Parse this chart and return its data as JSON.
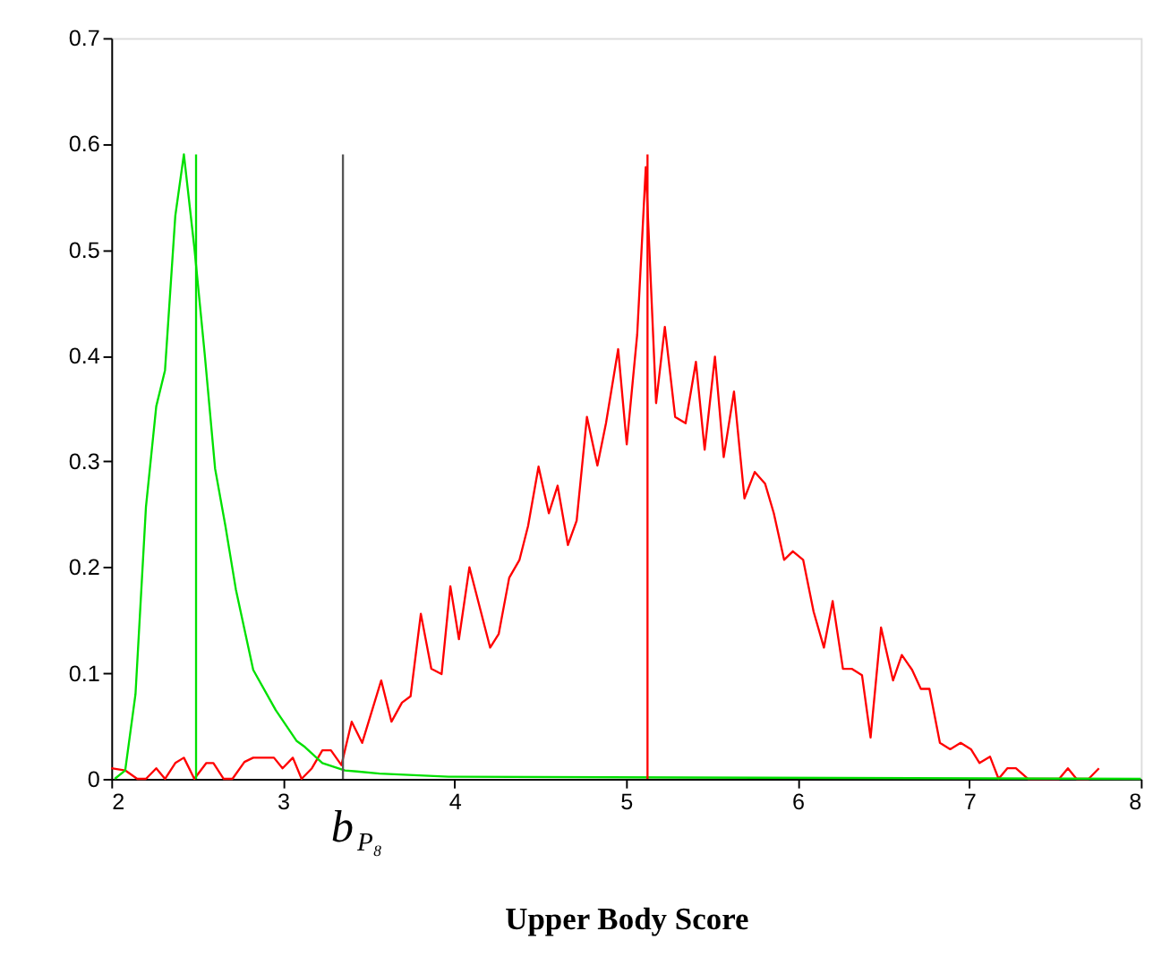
{
  "chart_data": {
    "type": "line",
    "xlabel": "Upper Body Score",
    "xlim": [
      2,
      8
    ],
    "xticks": [
      2,
      3,
      4,
      5,
      6,
      7,
      8
    ],
    "ylim": [
      0,
      0.7
    ],
    "yticks": [
      0,
      0.1,
      0.2,
      0.3,
      0.4,
      0.5,
      0.6,
      0.7
    ],
    "grid": false,
    "marker": "none",
    "line_style": "solid",
    "series": [
      {
        "color": "#ff0000",
        "x": [
          2.0,
          2.081,
          2.151,
          2.202,
          2.262,
          2.313,
          2.373,
          2.423,
          2.484,
          2.554,
          2.595,
          2.655,
          2.706,
          2.776,
          2.827,
          2.948,
          2.998,
          3.058,
          3.109,
          3.169,
          3.23,
          3.28,
          3.341,
          3.401,
          3.462,
          3.573,
          3.633,
          3.694,
          3.744,
          3.804,
          3.865,
          3.925,
          3.976,
          4.026,
          4.087,
          4.208,
          4.258,
          4.319,
          4.379,
          4.429,
          4.49,
          4.55,
          4.601,
          4.661,
          4.712,
          4.772,
          4.833,
          4.883,
          4.954,
          5.004,
          5.065,
          5.115,
          5.175,
          5.226,
          5.286,
          5.347,
          5.407,
          5.458,
          5.518,
          5.569,
          5.629,
          5.69,
          5.75,
          5.81,
          5.861,
          5.921,
          5.972,
          6.032,
          6.093,
          6.153,
          6.204,
          6.264,
          6.315,
          6.375,
          6.425,
          6.486,
          6.556,
          6.607,
          6.667,
          6.718,
          6.768,
          6.829,
          6.889,
          6.95,
          7.01,
          7.06,
          7.121,
          7.171,
          7.222,
          7.272,
          7.343,
          7.524,
          7.575,
          7.625,
          7.696,
          7.756
        ],
        "values": [
          0.01,
          0.008,
          0,
          0,
          0.01,
          0,
          0.015,
          0.02,
          0,
          0.015,
          0.015,
          0,
          0,
          0.016,
          0.02,
          0.02,
          0.01,
          0.02,
          0,
          0.01,
          0.027,
          0.027,
          0.013,
          0.054,
          0.034,
          0.093,
          0.054,
          0.072,
          0.078,
          0.156,
          0.104,
          0.099,
          0.182,
          0.132,
          0.2,
          0.124,
          0.137,
          0.19,
          0.207,
          0.239,
          0.295,
          0.251,
          0.277,
          0.221,
          0.244,
          0.342,
          0.296,
          0.336,
          0.406,
          0.316,
          0.42,
          0.578,
          0.355,
          0.427,
          0.342,
          0.336,
          0.394,
          0.311,
          0.399,
          0.304,
          0.366,
          0.265,
          0.29,
          0.279,
          0.251,
          0.207,
          0.215,
          0.207,
          0.158,
          0.124,
          0.168,
          0.104,
          0.104,
          0.098,
          0.039,
          0.143,
          0.093,
          0.117,
          0.103,
          0.085,
          0.085,
          0.034,
          0.028,
          0.034,
          0.028,
          0.015,
          0.021,
          0,
          0.01,
          0.01,
          0,
          0,
          0.01,
          0,
          0,
          0.01
        ]
      },
      {
        "color": "#00e000",
        "x": [
          2.02,
          2.081,
          2.141,
          2.202,
          2.262,
          2.313,
          2.373,
          2.423,
          2.484,
          2.544,
          2.605,
          2.665,
          2.726,
          2.827,
          2.958,
          3.079,
          3.129,
          3.23,
          3.361,
          3.431,
          3.563,
          3.966,
          8.0
        ],
        "values": [
          0,
          0.008,
          0.08,
          0.257,
          0.352,
          0.386,
          0.532,
          0.59,
          0.502,
          0.402,
          0.293,
          0.239,
          0.179,
          0.103,
          0.065,
          0.036,
          0.03,
          0.015,
          0.008,
          0.007,
          0.005,
          0.002,
          0
        ]
      },
      {
        "color": "#00e000",
        "x": [
          2.494,
          2.494
        ],
        "values": [
          0,
          0.59
        ]
      },
      {
        "color": "#555555",
        "x": [
          3.35,
          3.35
        ],
        "values": [
          0,
          0.59
        ]
      },
      {
        "color": "#ff0000",
        "x": [
          5.125,
          5.125
        ],
        "values": [
          0,
          0.59
        ]
      }
    ],
    "annotations": [
      "b$_{P₈}$"
    ]
  }
}
